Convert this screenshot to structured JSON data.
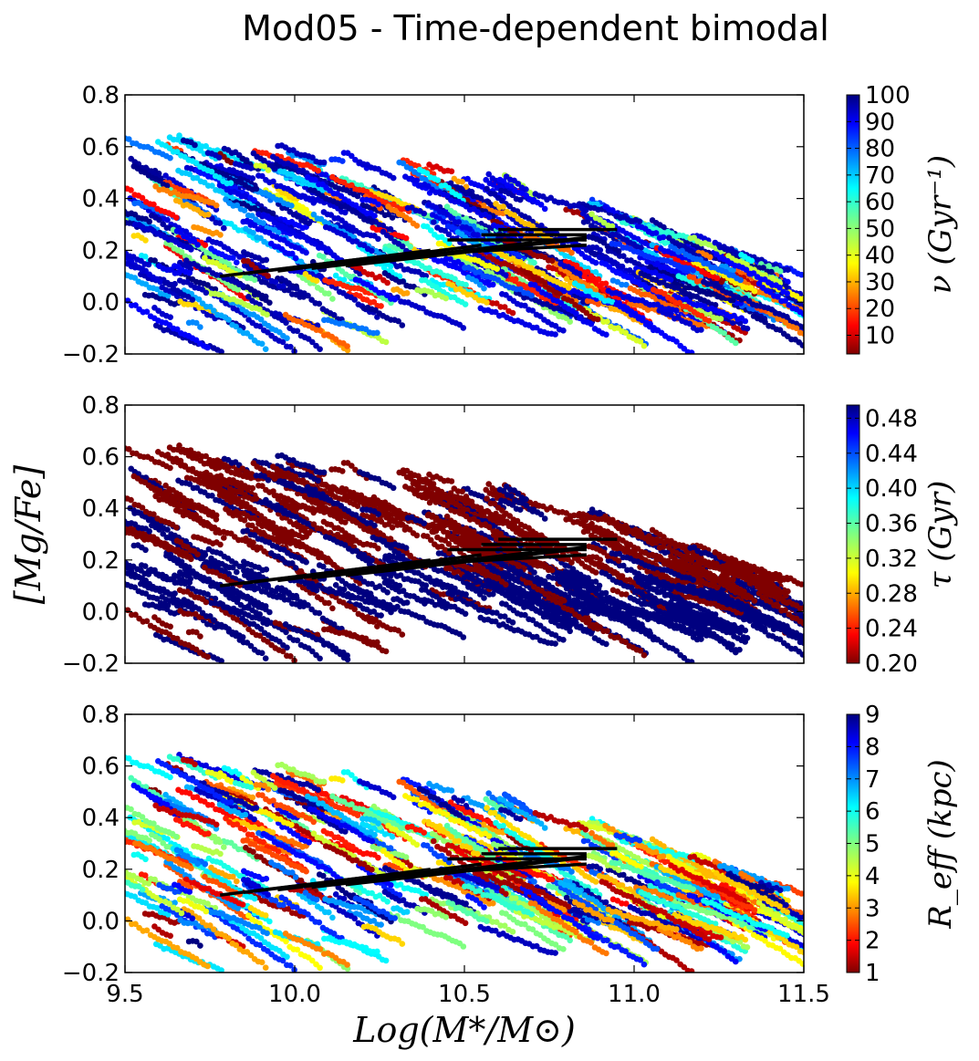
{
  "chart_data": {
    "type": "scatter",
    "title": "Mod05 - Time-dependent bimodal",
    "xlabel": "Log(M*/M⊙)",
    "ylabel": "[Mg/Fe]",
    "xlim": [
      9.5,
      11.5
    ],
    "ylim": [
      -0.2,
      0.8
    ],
    "xticks": [
      "9.5",
      "10.0",
      "10.5",
      "11.0",
      "11.5"
    ],
    "yticks": [
      "−0.2",
      "0.0",
      "0.2",
      "0.4",
      "0.6",
      "0.8"
    ],
    "trend_lines": [
      {
        "x": [
          9.78,
          10.22
        ],
        "y": [
          0.1,
          0.17
        ]
      },
      {
        "x": [
          9.85,
          10.4
        ],
        "y": [
          0.11,
          0.2
        ]
      },
      {
        "x": [
          9.95,
          10.55
        ],
        "y": [
          0.12,
          0.22
        ]
      },
      {
        "x": [
          10.05,
          10.7
        ],
        "y": [
          0.13,
          0.23
        ]
      },
      {
        "x": [
          10.15,
          10.82
        ],
        "y": [
          0.14,
          0.24
        ]
      },
      {
        "x": [
          10.25,
          10.86
        ],
        "y": [
          0.16,
          0.25
        ]
      },
      {
        "x": [
          10.45,
          10.86
        ],
        "y": [
          0.19,
          0.22
        ]
      },
      {
        "x": [
          10.45,
          10.86
        ],
        "y": [
          0.24,
          0.24
        ]
      },
      {
        "x": [
          10.55,
          10.86
        ],
        "y": [
          0.26,
          0.26
        ]
      },
      {
        "x": [
          10.6,
          10.95
        ],
        "y": [
          0.28,
          0.28
        ]
      }
    ],
    "panels": [
      {
        "name": "panel-nu",
        "colorbar_label": "ν (Gyr⁻¹)",
        "colorbar_ticks": [
          "10",
          "20",
          "30",
          "40",
          "50",
          "60",
          "70",
          "80",
          "90",
          "100"
        ],
        "colorbar_range": [
          3,
          100
        ]
      },
      {
        "name": "panel-tau",
        "colorbar_label": "τ (Gyr)",
        "colorbar_ticks": [
          "0.20",
          "0.24",
          "0.28",
          "0.32",
          "0.36",
          "0.40",
          "0.44",
          "0.48"
        ],
        "colorbar_range": [
          0.2,
          0.495
        ]
      },
      {
        "name": "panel-reff",
        "colorbar_label": "R_eff (kpc)",
        "colorbar_ticks": [
          "1",
          "2",
          "3",
          "4",
          "5",
          "6",
          "7",
          "8",
          "9"
        ],
        "colorbar_range": [
          1,
          9
        ]
      }
    ]
  }
}
